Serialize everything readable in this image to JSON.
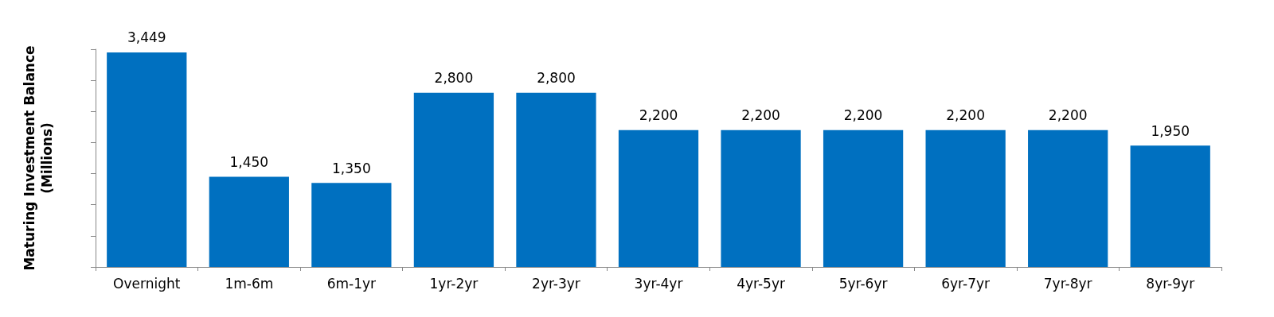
{
  "chart_data": {
    "type": "bar",
    "ylabel": "Maturing Investment Balance\n(Millions)",
    "categories": [
      "Overnight",
      "1m-6m",
      "6m-1yr",
      "1yr-2yr",
      "2yr-3yr",
      "3yr-4yr",
      "4yr-5yr",
      "5yr-6yr",
      "6yr-7yr",
      "7yr-8yr",
      "8yr-9yr"
    ],
    "values": [
      3449,
      1450,
      1350,
      2800,
      2800,
      2200,
      2200,
      2200,
      2200,
      2200,
      1950
    ],
    "value_labels": [
      "3,449",
      "1,450",
      "1,350",
      "2,800",
      "2,800",
      "2,200",
      "2,200",
      "2,200",
      "2,200",
      "2,200",
      "1,950"
    ],
    "color": "#0070c0",
    "tick_labels": "x"
  }
}
